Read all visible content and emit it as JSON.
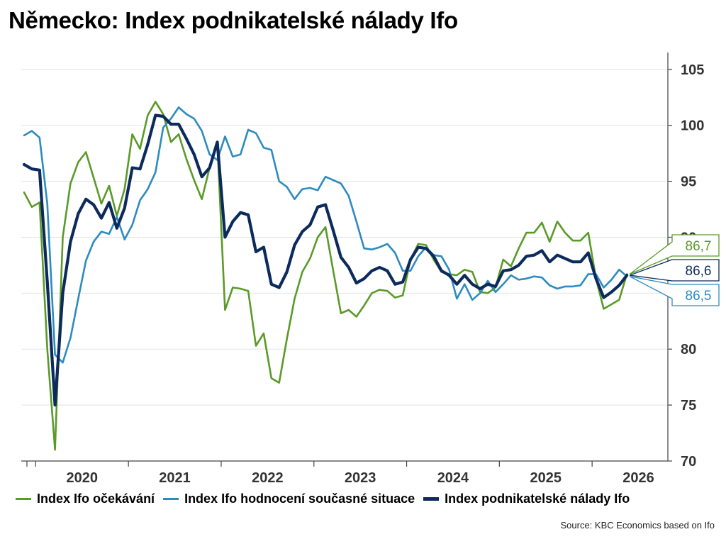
{
  "title": "Německo: Index podnikatelské nálady Ifo",
  "source": "Source: KBC Economics based on Ifo",
  "colors": {
    "expectations": "#5a9a28",
    "current": "#2c8bbf",
    "business": "#0c2a5c"
  },
  "chart_data": {
    "type": "line",
    "title": "Německo: Index podnikatelské nálady Ifo",
    "xlabel": "",
    "ylabel": "",
    "ylim": [
      70,
      106
    ],
    "yticks": [
      70,
      75,
      80,
      85,
      90,
      95,
      100,
      105
    ],
    "x_start": "2019-11",
    "x_tick_labels": [
      "2020",
      "2021",
      "2022",
      "2023",
      "2024",
      "2025",
      "2026"
    ],
    "grid": true,
    "legend_position": "bottom",
    "series": [
      {
        "name": "Index Ifo očekávání",
        "color": "#5a9a28",
        "last_label": "86,7",
        "values": [
          94.0,
          92.7,
          93.1,
          80.0,
          71.0,
          90.0,
          94.8,
          96.7,
          97.6,
          95.3,
          93.0,
          94.6,
          91.9,
          94.3,
          99.2,
          97.9,
          100.9,
          102.1,
          101.0,
          98.5,
          99.2,
          97.0,
          95.1,
          93.4,
          96.2,
          98.5,
          83.5,
          85.5,
          85.4,
          85.2,
          80.3,
          81.4,
          77.4,
          77.0,
          80.9,
          84.5,
          86.9,
          88.1,
          90.0,
          90.9,
          87.0,
          83.2,
          83.5,
          82.9,
          83.9,
          85.0,
          85.3,
          85.2,
          84.6,
          84.8,
          88.0,
          89.4,
          89.3,
          88.0,
          86.9,
          86.7,
          86.6,
          87.1,
          86.9,
          85.1,
          85.0,
          85.5,
          88.0,
          87.4,
          89.0,
          90.4,
          90.4,
          91.3,
          89.6,
          91.4,
          90.4,
          89.7,
          89.7,
          90.4,
          86.3,
          83.6,
          84.0,
          84.4,
          86.7
        ]
      },
      {
        "name": "Index Ifo hodnocení současné situace",
        "color": "#2c8bbf",
        "last_label": "86,5",
        "values": [
          99.1,
          99.5,
          98.9,
          93.0,
          79.5,
          78.8,
          81.0,
          84.5,
          87.9,
          89.6,
          90.5,
          90.3,
          91.8,
          89.8,
          91.1,
          93.3,
          94.3,
          95.8,
          99.8,
          100.6,
          101.6,
          101.0,
          100.6,
          99.5,
          97.4,
          96.9,
          99.0,
          97.2,
          97.4,
          99.6,
          99.3,
          98.0,
          97.8,
          95.0,
          94.5,
          93.4,
          94.3,
          94.4,
          94.2,
          95.4,
          95.1,
          94.8,
          93.7,
          91.4,
          89.0,
          88.9,
          89.1,
          89.4,
          88.6,
          87.0,
          87.0,
          88.3,
          89.1,
          88.4,
          88.3,
          87.1,
          84.5,
          85.8,
          84.4,
          85.0,
          86.1,
          85.1,
          85.8,
          86.6,
          86.2,
          86.3,
          86.5,
          86.4,
          85.7,
          85.4,
          85.6,
          85.6,
          85.7,
          86.7,
          86.7,
          85.5,
          86.2,
          87.1,
          86.5
        ]
      },
      {
        "name": "Index podnikatelské nálady Ifo",
        "color": "#0c2a5c",
        "last_label": "86,6",
        "values": [
          96.5,
          96.1,
          96.0,
          86.0,
          75.0,
          85.0,
          89.6,
          92.1,
          93.4,
          92.9,
          91.7,
          93.1,
          90.8,
          92.6,
          96.2,
          96.1,
          98.3,
          100.9,
          100.8,
          100.1,
          100.1,
          98.8,
          97.4,
          95.4,
          96.2,
          98.5,
          90.0,
          91.4,
          92.2,
          92.0,
          88.7,
          89.1,
          85.8,
          85.5,
          86.9,
          89.3,
          90.5,
          91.1,
          92.7,
          92.9,
          90.6,
          88.2,
          87.3,
          85.9,
          86.3,
          87.0,
          87.3,
          87.0,
          85.8,
          86.0,
          88.0,
          89.1,
          89.0,
          88.3,
          87.0,
          86.6,
          85.8,
          86.6,
          85.8,
          85.4,
          85.8,
          85.6,
          87.0,
          87.1,
          87.5,
          88.3,
          88.4,
          88.8,
          87.8,
          88.4,
          88.1,
          87.8,
          87.8,
          88.6,
          86.3,
          84.6,
          85.1,
          85.7,
          86.6
        ]
      }
    ]
  }
}
